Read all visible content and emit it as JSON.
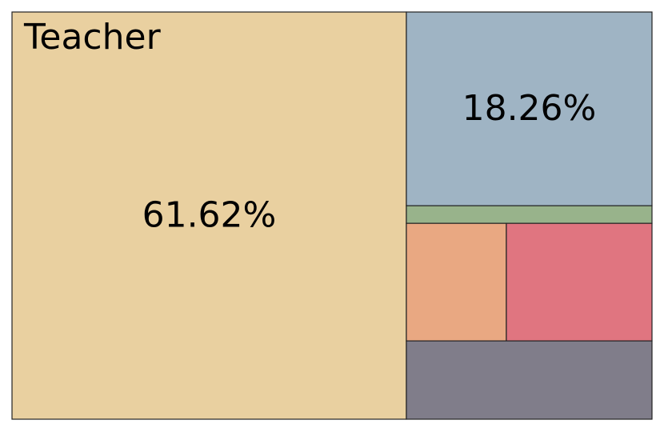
{
  "chart_data": {
    "type": "treemap",
    "categories": [
      "Teacher",
      null,
      null,
      null,
      null,
      null
    ],
    "values": [
      61.62,
      18.26,
      1.66,
      4.51,
      6.57,
      7.38
    ],
    "value_labels": [
      "61.62%",
      "18.26%",
      null,
      null,
      null,
      null
    ],
    "colors": [
      "#e9d0a0",
      "#9fb4c4",
      "#98b38b",
      "#e9a882",
      "#e07580",
      "#807d8a"
    ]
  }
}
